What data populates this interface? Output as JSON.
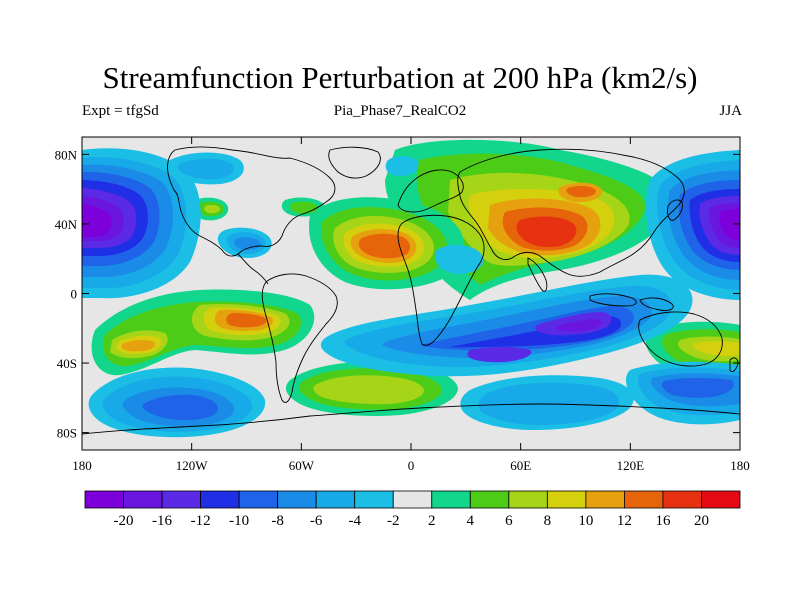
{
  "title": "Streamfunction Perturbation at 200 hPa (km2/s)",
  "subtitle_left": "Expt = tfgSd",
  "subtitle_center": "Pia_Phase7_RealCO2",
  "subtitle_right": "JJA",
  "lat_ticks": [
    "80N",
    "40N",
    "0",
    "40S",
    "80S"
  ],
  "lon_ticks": [
    "180",
    "120W",
    "60W",
    "0",
    "60E",
    "120E",
    "180"
  ],
  "colorbar": {
    "labels": [
      "-20",
      "-16",
      "-12",
      "-10",
      "-8",
      "-6",
      "-4",
      "-2",
      "2",
      "4",
      "6",
      "8",
      "10",
      "12",
      "16",
      "20"
    ],
    "colors": [
      "#7d00dc",
      "#6a16e0",
      "#5a2ae6",
      "#1f2fe6",
      "#1f64e8",
      "#1a8ce8",
      "#18a9e8",
      "#1bbfe6",
      "#e6e6e6",
      "#12d68c",
      "#4ccc16",
      "#a6d416",
      "#d4d00e",
      "#e6a20e",
      "#e6640a",
      "#e63210",
      "#e60a14"
    ]
  },
  "colors": {
    "background": "#e6e6e6",
    "coastline": "#000000"
  }
}
